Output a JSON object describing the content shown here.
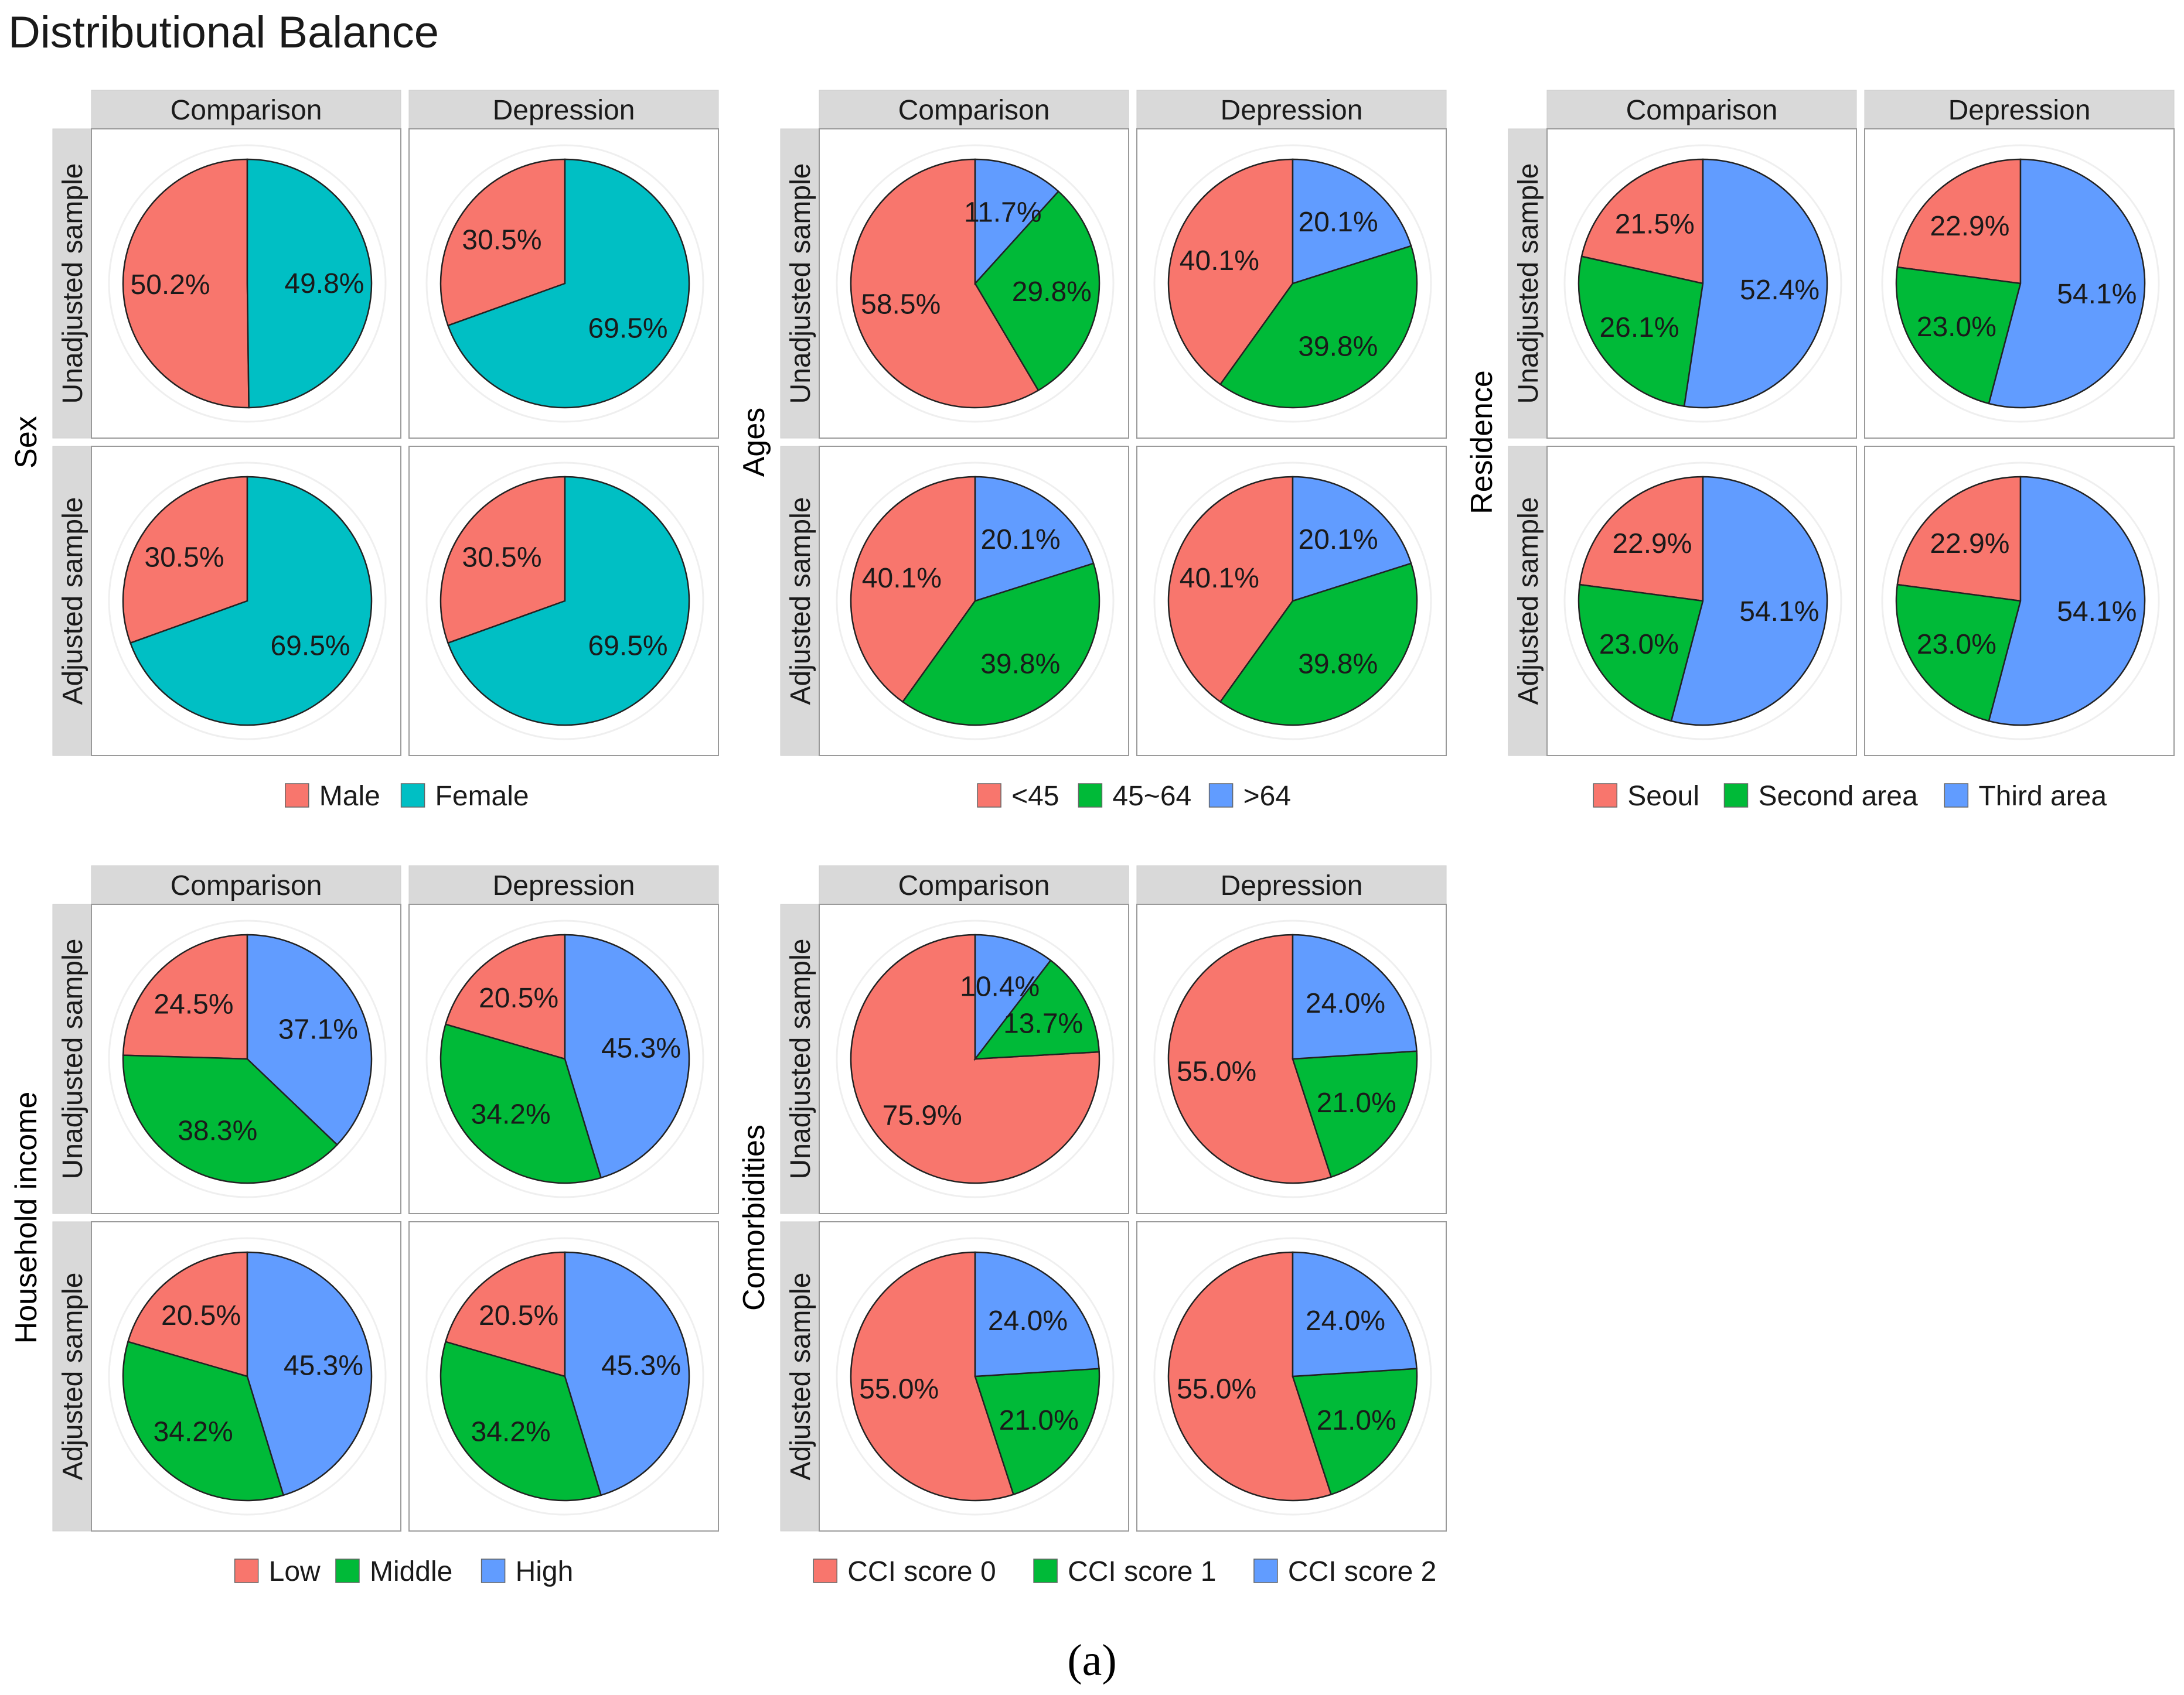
{
  "title": "Distributional Balance",
  "caption": "(a)",
  "column_labels": [
    "Comparison",
    "Depression"
  ],
  "row_labels": [
    "Unadjusted sample",
    "Adjusted sample"
  ],
  "chart_data": [
    {
      "type": "pie",
      "variable": "Sex",
      "categories": [
        "Male",
        "Female"
      ],
      "colors": [
        "#F8766D",
        "#00BFC4"
      ],
      "panels": [
        {
          "row": "Unadjusted sample",
          "column": "Comparison",
          "values": [
            50.2,
            49.8
          ],
          "labels": [
            "50.2%",
            "49.8%"
          ]
        },
        {
          "row": "Unadjusted sample",
          "column": "Depression",
          "values": [
            30.5,
            69.5
          ],
          "labels": [
            "30.5%",
            "69.5%"
          ]
        },
        {
          "row": "Adjusted sample",
          "column": "Comparison",
          "values": [
            30.5,
            69.5
          ],
          "labels": [
            "30.5%",
            "69.5%"
          ]
        },
        {
          "row": "Adjusted sample",
          "column": "Depression",
          "values": [
            30.5,
            69.5
          ],
          "labels": [
            "30.5%",
            "69.5%"
          ]
        }
      ]
    },
    {
      "type": "pie",
      "variable": "Ages",
      "categories": [
        "<45",
        "45~64",
        ">64"
      ],
      "colors": [
        "#F8766D",
        "#00BA38",
        "#619CFF"
      ],
      "panels": [
        {
          "row": "Unadjusted sample",
          "column": "Comparison",
          "values": [
            58.5,
            29.8,
            11.7
          ],
          "labels": [
            "58.5%",
            "29.8%",
            "11.7%"
          ]
        },
        {
          "row": "Unadjusted sample",
          "column": "Depression",
          "values": [
            40.1,
            39.8,
            20.1
          ],
          "labels": [
            "40.1%",
            "39.8%",
            "20.1%"
          ]
        },
        {
          "row": "Adjusted sample",
          "column": "Comparison",
          "values": [
            40.1,
            39.8,
            20.1
          ],
          "labels": [
            "40.1%",
            "39.8%",
            "20.1%"
          ]
        },
        {
          "row": "Adjusted sample",
          "column": "Depression",
          "values": [
            40.1,
            39.8,
            20.1
          ],
          "labels": [
            "40.1%",
            "39.8%",
            "20.1%"
          ]
        }
      ]
    },
    {
      "type": "pie",
      "variable": "Residence",
      "categories": [
        "Seoul",
        "Second area",
        "Third area"
      ],
      "colors": [
        "#F8766D",
        "#00BA38",
        "#619CFF"
      ],
      "panels": [
        {
          "row": "Unadjusted sample",
          "column": "Comparison",
          "values": [
            21.5,
            26.1,
            52.4
          ],
          "labels": [
            "21.5%",
            "26.1%",
            "52.4%"
          ]
        },
        {
          "row": "Unadjusted sample",
          "column": "Depression",
          "values": [
            22.9,
            23.0,
            54.1
          ],
          "labels": [
            "22.9%",
            "23.0%",
            "54.1%"
          ]
        },
        {
          "row": "Adjusted sample",
          "column": "Comparison",
          "values": [
            22.9,
            23.0,
            54.1
          ],
          "labels": [
            "22.9%",
            "23.0%",
            "54.1%"
          ]
        },
        {
          "row": "Adjusted sample",
          "column": "Depression",
          "values": [
            22.9,
            23.0,
            54.1
          ],
          "labels": [
            "22.9%",
            "23.0%",
            "54.1%"
          ]
        }
      ]
    },
    {
      "type": "pie",
      "variable": "Household income",
      "categories": [
        "Low",
        "Middle",
        "High"
      ],
      "colors": [
        "#F8766D",
        "#00BA38",
        "#619CFF"
      ],
      "panels": [
        {
          "row": "Unadjusted sample",
          "column": "Comparison",
          "values": [
            24.5,
            38.3,
            37.1
          ],
          "labels": [
            "24.5%",
            "38.3%",
            "37.1%"
          ]
        },
        {
          "row": "Unadjusted sample",
          "column": "Depression",
          "values": [
            20.5,
            34.2,
            45.3
          ],
          "labels": [
            "20.5%",
            "34.2%",
            "45.3%"
          ]
        },
        {
          "row": "Adjusted sample",
          "column": "Comparison",
          "values": [
            20.5,
            34.2,
            45.3
          ],
          "labels": [
            "20.5%",
            "34.2%",
            "45.3%"
          ]
        },
        {
          "row": "Adjusted sample",
          "column": "Depression",
          "values": [
            20.5,
            34.2,
            45.3
          ],
          "labels": [
            "20.5%",
            "34.2%",
            "45.3%"
          ]
        }
      ]
    },
    {
      "type": "pie",
      "variable": "Comorbidities",
      "categories": [
        "CCI score 0",
        "CCI score 1",
        "CCI score 2"
      ],
      "colors": [
        "#F8766D",
        "#00BA38",
        "#619CFF"
      ],
      "panels": [
        {
          "row": "Unadjusted sample",
          "column": "Comparison",
          "values": [
            75.9,
            13.7,
            10.4
          ],
          "labels": [
            "75.9%",
            "13.7%",
            "10.4%"
          ]
        },
        {
          "row": "Unadjusted sample",
          "column": "Depression",
          "values": [
            55.0,
            21.0,
            24.0
          ],
          "labels": [
            "55.0%",
            "21.0%",
            "24.0%"
          ]
        },
        {
          "row": "Adjusted sample",
          "column": "Comparison",
          "values": [
            55.0,
            21.0,
            24.0
          ],
          "labels": [
            "55.0%",
            "21.0%",
            "24.0%"
          ]
        },
        {
          "row": "Adjusted sample",
          "column": "Depression",
          "values": [
            55.0,
            21.0,
            24.0
          ],
          "labels": [
            "55.0%",
            "21.0%",
            "24.0%"
          ]
        }
      ]
    }
  ]
}
